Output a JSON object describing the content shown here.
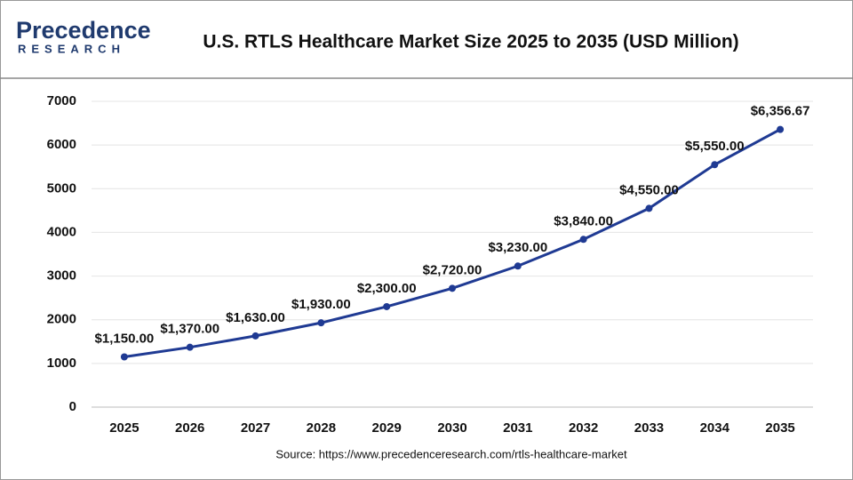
{
  "brand": {
    "name": "Precedence",
    "tagline": "RESEARCH"
  },
  "chart_data": {
    "type": "line",
    "title": "U.S. RTLS Healthcare Market Size 2025 to 2035 (USD Million)",
    "categories": [
      "2025",
      "2026",
      "2027",
      "2028",
      "2029",
      "2030",
      "2031",
      "2032",
      "2033",
      "2034",
      "2035"
    ],
    "values": [
      1150,
      1370,
      1630,
      1930,
      2300,
      2720,
      3230,
      3840,
      4550,
      5550,
      6356.67
    ],
    "value_labels": [
      "$1,150.00",
      "$1,370.00",
      "$1,630.00",
      "$1,930.00",
      "$2,300.00",
      "$2,720.00",
      "$3,230.00",
      "$3,840.00",
      "$4,550.00",
      "$5,550.00",
      "$6,356.67"
    ],
    "color": "#1f3a93",
    "ylim": [
      0,
      7000
    ],
    "yticks": [
      0,
      1000,
      2000,
      3000,
      4000,
      5000,
      6000,
      7000
    ],
    "grid": true,
    "source": "Source: https://www.precedenceresearch.com/rtls-healthcare-market"
  }
}
